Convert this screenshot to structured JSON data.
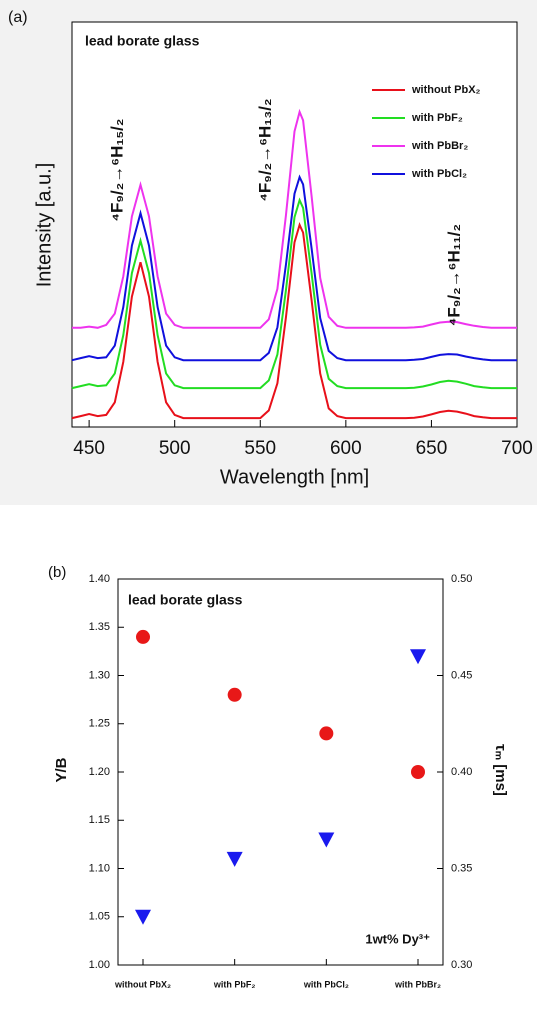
{
  "chart_data": [
    {
      "type": "line",
      "panel_label": "(a)",
      "title": "lead borate glass",
      "xlabel": "Wavelength [nm]",
      "ylabel": "Intensity [a.u.]",
      "annotations": [
        "⁴F₉/₂→⁶H₁₅/₂",
        "⁴F₉/₂→⁶H₁₃/₂",
        "⁴F₉/₂→⁶H₁₁/₂"
      ],
      "legend": "upper right",
      "xlim": [
        440,
        700
      ],
      "xticks": [
        450,
        500,
        550,
        600,
        650,
        700
      ],
      "ylim": [
        0,
        100
      ],
      "x": [
        440,
        445,
        450,
        455,
        460,
        465,
        470,
        475,
        480,
        485,
        490,
        495,
        500,
        505,
        510,
        515,
        520,
        525,
        530,
        535,
        540,
        545,
        550,
        555,
        560,
        565,
        570,
        573,
        575,
        580,
        585,
        590,
        595,
        600,
        605,
        610,
        615,
        620,
        625,
        630,
        635,
        640,
        645,
        650,
        655,
        660,
        665,
        670,
        675,
        680,
        685,
        690,
        695,
        700
      ],
      "series": [
        {
          "name": "without PbX₂",
          "color": "#e8101a",
          "values": [
            2.2,
            2.7,
            3.2,
            2.7,
            3.0,
            6.1,
            16.1,
            32.2,
            40.7,
            32.2,
            16.1,
            6.1,
            3.0,
            2.2,
            2.2,
            2.2,
            2.2,
            2.2,
            2.2,
            2.2,
            2.2,
            2.2,
            2.2,
            4.1,
            10.8,
            27.0,
            45.6,
            49.9,
            48.0,
            31.3,
            13.2,
            4.6,
            2.7,
            2.2,
            2.2,
            2.2,
            2.2,
            2.2,
            2.2,
            2.2,
            2.2,
            2.3,
            2.6,
            3.1,
            3.7,
            4.0,
            3.8,
            3.3,
            2.7,
            2.4,
            2.2,
            2.2,
            2.2,
            2.2
          ]
        },
        {
          "name": "with PbF₂",
          "color": "#22dd22",
          "values": [
            9.6,
            10.1,
            10.6,
            10.1,
            10.3,
            13.2,
            22.7,
            38.0,
            46.0,
            38.0,
            22.7,
            13.2,
            10.3,
            9.6,
            9.6,
            9.6,
            9.6,
            9.6,
            9.6,
            9.6,
            9.6,
            9.6,
            9.6,
            11.5,
            17.9,
            33.7,
            51.8,
            56.0,
            54.1,
            37.9,
            20.3,
            11.9,
            10.1,
            9.6,
            9.6,
            9.6,
            9.6,
            9.6,
            9.6,
            9.6,
            9.6,
            9.7,
            10.0,
            10.5,
            11.1,
            11.4,
            11.2,
            10.7,
            10.1,
            9.8,
            9.6,
            9.6,
            9.6,
            9.6
          ]
        },
        {
          "name": "with PbBr₂",
          "color": "#ee33ee",
          "values": [
            24.5,
            24.5,
            24.8,
            24.5,
            25.2,
            28.0,
            37.2,
            52.0,
            59.8,
            52.0,
            37.2,
            28.0,
            25.2,
            24.5,
            24.5,
            24.5,
            24.5,
            24.5,
            24.5,
            24.5,
            24.5,
            24.5,
            24.5,
            26.6,
            34.1,
            52.2,
            73.0,
            77.8,
            75.7,
            57.0,
            36.8,
            27.2,
            25.0,
            24.5,
            24.5,
            24.5,
            24.5,
            24.5,
            24.5,
            24.5,
            24.5,
            24.6,
            24.8,
            25.3,
            25.8,
            26.0,
            25.9,
            25.4,
            25.0,
            24.7,
            24.5,
            24.5,
            24.5,
            24.5
          ]
        },
        {
          "name": "with PbCl₂",
          "color": "#1010dd",
          "values": [
            16.5,
            17.0,
            17.5,
            17.0,
            17.2,
            20.1,
            29.6,
            44.8,
            52.8,
            44.8,
            29.6,
            20.1,
            17.2,
            16.5,
            16.5,
            16.5,
            16.5,
            16.5,
            16.5,
            16.5,
            16.5,
            16.5,
            16.5,
            18.3,
            24.6,
            40.0,
            57.6,
            61.7,
            59.9,
            44.1,
            26.9,
            18.8,
            17.0,
            16.5,
            16.5,
            16.5,
            16.5,
            16.5,
            16.5,
            16.5,
            16.5,
            16.6,
            16.8,
            17.3,
            17.8,
            18.0,
            17.9,
            17.4,
            17.0,
            16.7,
            16.5,
            16.5,
            16.5,
            16.5
          ]
        }
      ]
    },
    {
      "type": "scatter",
      "panel_label": "(b)",
      "title": "lead borate glass",
      "annotation": "1wt% Dy³⁺",
      "ylabel": "Y/B",
      "y2label": "τₘ [ms]",
      "categories": [
        "without PbX₂",
        "with PbF₂",
        "with PbCl₂",
        "with PbBr₂"
      ],
      "ylim": [
        1.0,
        1.4
      ],
      "yticks": [
        {
          "value": 1.0,
          "label": "1.00"
        },
        {
          "value": 1.05,
          "label": "1.05"
        },
        {
          "value": 1.1,
          "label": "1.10"
        },
        {
          "value": 1.15,
          "label": "1.15"
        },
        {
          "value": 1.2,
          "label": "1.20"
        },
        {
          "value": 1.25,
          "label": "1.25"
        },
        {
          "value": 1.3,
          "label": "1.30"
        },
        {
          "value": 1.35,
          "label": "1.35"
        },
        {
          "value": 1.4,
          "label": "1.40"
        }
      ],
      "y2lim": [
        0.3,
        0.5
      ],
      "y2ticks": [
        {
          "value": 0.3,
          "label": "0.30"
        },
        {
          "value": 0.35,
          "label": "0.35"
        },
        {
          "value": 0.4,
          "label": "0.40"
        },
        {
          "value": 0.45,
          "label": "0.45"
        },
        {
          "value": 0.5,
          "label": "0.50"
        }
      ],
      "series": [
        {
          "color": "#1a1aee",
          "marker": "triangle-down",
          "values": [
            1.05,
            1.11,
            1.13,
            1.32
          ]
        },
        {
          "color": "#e81818",
          "marker": "circle",
          "axis": "y2",
          "values": [
            0.47,
            0.44,
            0.42,
            0.4
          ]
        }
      ]
    }
  ]
}
